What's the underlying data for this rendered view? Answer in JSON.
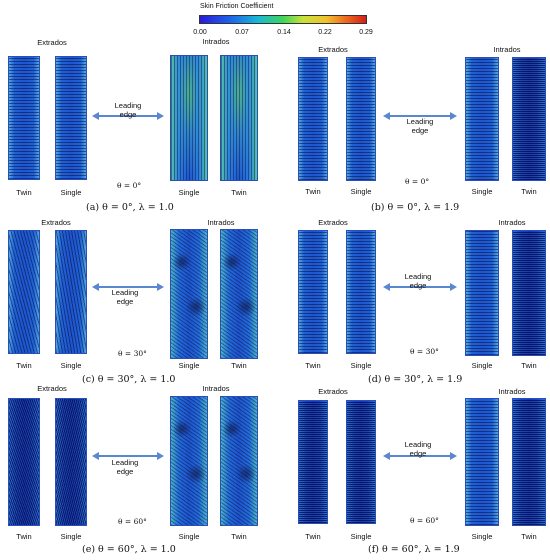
{
  "colorbar": {
    "title": "Skin Friction Coefficient",
    "ticks": [
      "0.00",
      "0.07",
      "0.14",
      "0.22",
      "0.29"
    ]
  },
  "labels": {
    "extrados": "Extrados",
    "intrados": "Intrados",
    "twin": "Twin",
    "single": "Single",
    "leading": "Leading",
    "edge": "edge"
  },
  "panels": [
    {
      "caption": "(a)  θ = 0°, λ = 1.0",
      "theta": "θ = 0°",
      "left_labels": [
        "Twin",
        "Single"
      ],
      "right_labels": [
        "Single",
        "Twin"
      ]
    },
    {
      "caption": "(b)  θ = 0°, λ = 1.9",
      "theta": "θ = 0°",
      "left_labels": [
        "Twin",
        "Single"
      ],
      "right_labels": [
        "Single",
        "Twin"
      ]
    },
    {
      "caption": "(c)  θ = 30°, λ = 1.0",
      "theta": "θ = 30°",
      "left_labels": [
        "Twin",
        "Single"
      ],
      "right_labels": [
        "Single",
        "Twin"
      ]
    },
    {
      "caption": "(d)  θ = 30°, λ = 1.9",
      "theta": "θ = 30°",
      "left_labels": [
        "Twin",
        "Single"
      ],
      "right_labels": [
        "Single",
        "Twin"
      ]
    },
    {
      "caption": "(e)  θ = 60°, λ = 1.0",
      "theta": "θ = 60°",
      "left_labels": [
        "Twin",
        "Single"
      ],
      "right_labels": [
        "Single",
        "Twin"
      ]
    },
    {
      "caption": "(f)  θ = 60°, λ = 1.9",
      "theta": "θ = 60°",
      "left_labels": [
        "Twin",
        "Single"
      ],
      "right_labels": [
        "Single",
        "Twin"
      ]
    }
  ]
}
